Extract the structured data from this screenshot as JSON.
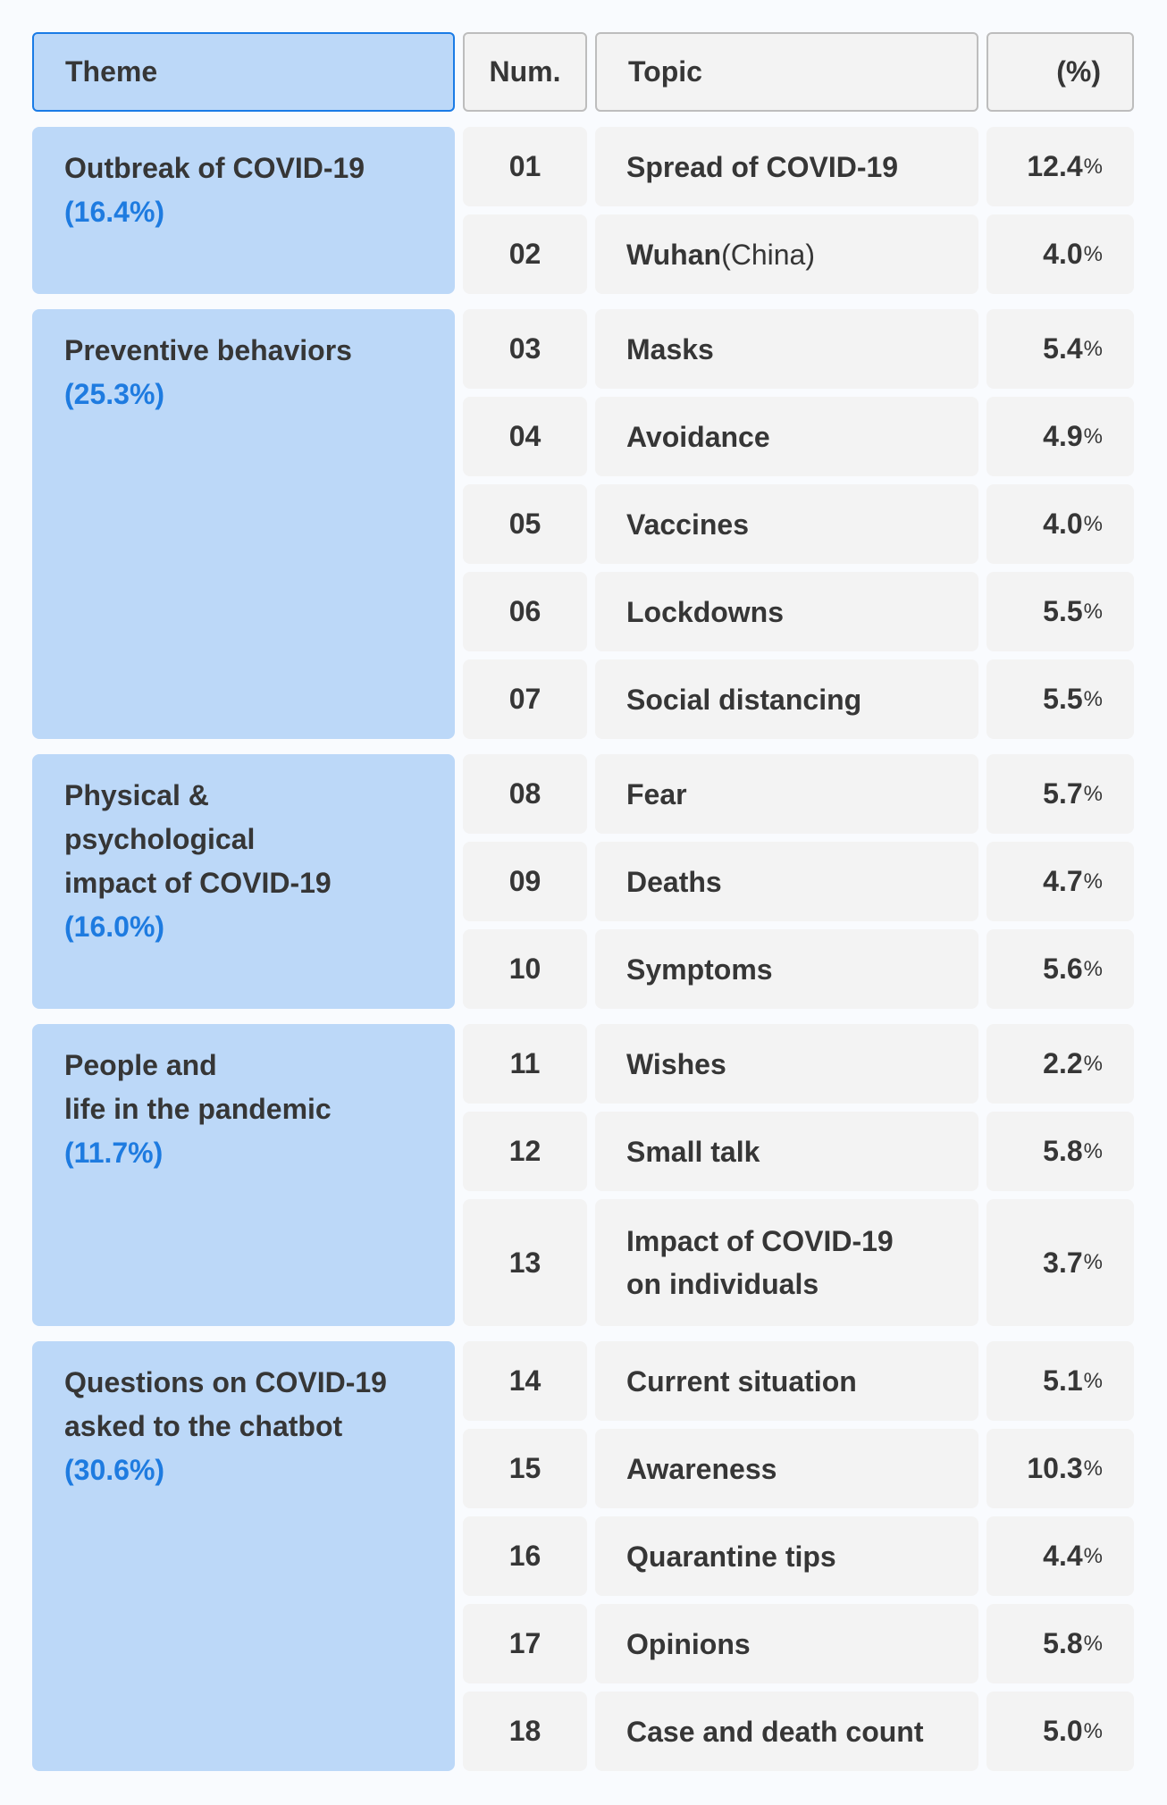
{
  "header": {
    "theme": "Theme",
    "num": "Num.",
    "topic": "Topic",
    "percent": "(%)"
  },
  "colors": {
    "theme_bg": "#bcd8f8",
    "accent": "#1e7be0",
    "cell_bg": "#f3f3f3"
  },
  "groups": [
    {
      "theme": "Outbreak of COVID-19",
      "percent": "(16.4%)",
      "rows": [
        {
          "num": "01",
          "topic": "Spread of COVID-19",
          "value": "12.4",
          "unit": "%"
        },
        {
          "num": "02",
          "topic": "Wuhan",
          "topic_extra": "(China)",
          "value": "4.0",
          "unit": "%"
        }
      ]
    },
    {
      "theme": "Preventive behaviors",
      "percent": "(25.3%)",
      "rows": [
        {
          "num": "03",
          "topic": "Masks",
          "value": "5.4",
          "unit": "%"
        },
        {
          "num": "04",
          "topic": "Avoidance",
          "value": "4.9",
          "unit": "%"
        },
        {
          "num": "05",
          "topic": "Vaccines",
          "value": "4.0",
          "unit": "%"
        },
        {
          "num": "06",
          "topic": "Lockdowns",
          "value": "5.5",
          "unit": "%"
        },
        {
          "num": "07",
          "topic": "Social distancing",
          "value": "5.5",
          "unit": "%"
        }
      ]
    },
    {
      "theme": "Physical &\npsychological\nimpact of COVID-19",
      "percent": "(16.0%)",
      "rows": [
        {
          "num": "08",
          "topic": "Fear",
          "value": "5.7",
          "unit": "%"
        },
        {
          "num": "09",
          "topic": "Deaths",
          "value": "4.7",
          "unit": "%"
        },
        {
          "num": "10",
          "topic": "Symptoms",
          "value": "5.6",
          "unit": "%"
        }
      ]
    },
    {
      "theme": "People and\nlife in the pandemic",
      "percent": "(11.7%)",
      "rows": [
        {
          "num": "11",
          "topic": "Wishes",
          "value": "2.2",
          "unit": "%"
        },
        {
          "num": "12",
          "topic": "Small talk",
          "value": "5.8",
          "unit": "%"
        },
        {
          "num": "13",
          "topic": "Impact of COVID-19\non individuals",
          "value": "3.7",
          "unit": "%",
          "tall": true
        }
      ]
    },
    {
      "theme": "Questions on COVID-19\nasked to the chatbot",
      "percent": "(30.6%)",
      "rows": [
        {
          "num": "14",
          "topic": "Current situation",
          "value": "5.1",
          "unit": "%"
        },
        {
          "num": "15",
          "topic": "Awareness",
          "value": "10.3",
          "unit": "%"
        },
        {
          "num": "16",
          "topic": "Quarantine tips",
          "value": "4.4",
          "unit": "%"
        },
        {
          "num": "17",
          "topic": "Opinions",
          "value": "5.8",
          "unit": "%"
        },
        {
          "num": "18",
          "topic": "Case and death count",
          "value": "5.0",
          "unit": "%"
        }
      ]
    }
  ]
}
